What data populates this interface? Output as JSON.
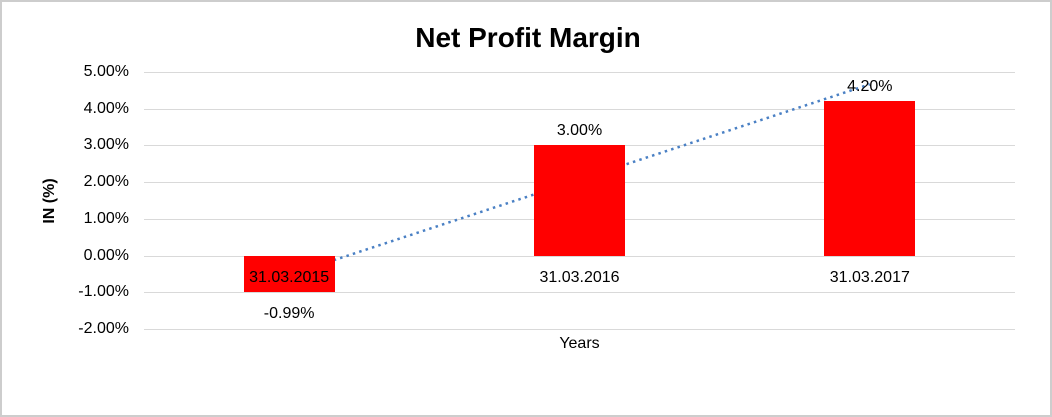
{
  "chart_data": {
    "type": "bar",
    "title": "Net Profit Margin",
    "xlabel": "Years",
    "ylabel": "IN (%)",
    "categories": [
      "31.03.2015",
      "31.03.2016",
      "31.03.2017"
    ],
    "values": [
      -0.99,
      3.0,
      4.2
    ],
    "data_labels": [
      "-0.99%",
      "3.00%",
      "4.20%"
    ],
    "ytick_labels": [
      "5.00%",
      "4.00%",
      "3.00%",
      "2.00%",
      "1.00%",
      "0.00%",
      "-1.00%",
      "-2.00%"
    ],
    "ylim": [
      -2,
      5
    ],
    "ytick_step": 1,
    "grid": true,
    "legend_position": "none",
    "bar_color": "#ff0000",
    "gridline_color": "#d9d9d9",
    "text_color": "#000000",
    "trendline": {
      "shape": "linear",
      "line_style": "dotted",
      "color": "#4a80c4"
    }
  }
}
